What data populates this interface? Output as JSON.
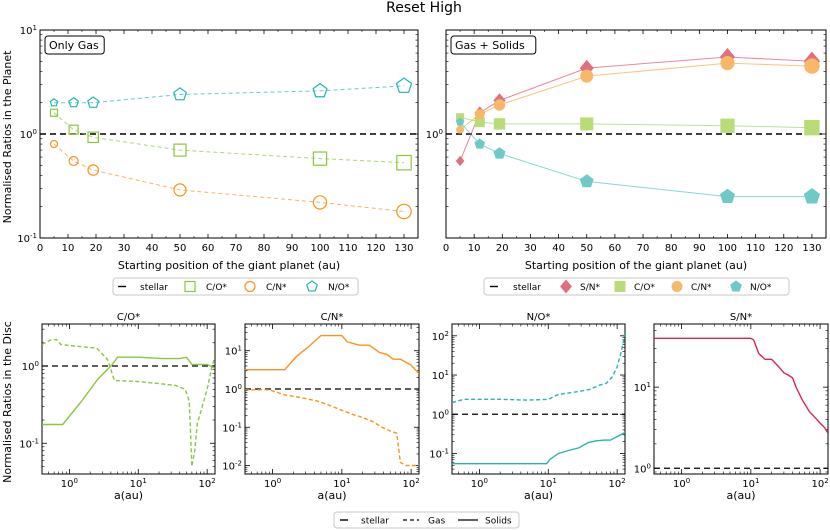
{
  "suptitle": "Reset High",
  "colors": {
    "co": "#8cc63f",
    "cn": "#f7941d",
    "no": "#26b5b0",
    "sn": "#d7264e",
    "sn_fill": "#e07080",
    "cn_fill": "#f9b868",
    "co_fill": "#b8dc78",
    "no_fill": "#6dcac6"
  },
  "y_label_top": "Normalised Ratios in the Planet",
  "y_label_bottom": "Normalised Ratios in the Disc",
  "legend_top_left": [
    "stellar",
    "C/O*",
    "C/N*",
    "N/O*"
  ],
  "legend_top_right": [
    "stellar",
    "S/N*",
    "C/O*",
    "C/N*",
    "N/O*"
  ],
  "legend_bottom": [
    "stellar",
    "Gas",
    "Solids"
  ],
  "chart_data": [
    {
      "type": "line",
      "panel_label": "Only Gas",
      "xlabel": "Starting position of the giant planet (au)",
      "ylabel": "Normalised Ratios in the Planet",
      "yscale": "log",
      "xlim": [
        0,
        135
      ],
      "ylim": [
        0.1,
        10
      ],
      "xticks": [
        0,
        10,
        20,
        30,
        40,
        50,
        60,
        70,
        80,
        90,
        100,
        110,
        120,
        130
      ],
      "yticks": [
        "10^-1",
        "10^0",
        "10^1"
      ],
      "reference": {
        "name": "stellar",
        "y": 1.0
      },
      "x": [
        5,
        12,
        19,
        50,
        100,
        130
      ],
      "series": [
        {
          "name": "C/O*",
          "marker": "square",
          "values": [
            1.6,
            1.1,
            0.93,
            0.7,
            0.58,
            0.53
          ]
        },
        {
          "name": "C/N*",
          "marker": "circle",
          "values": [
            0.8,
            0.55,
            0.45,
            0.29,
            0.22,
            0.18
          ]
        },
        {
          "name": "N/O*",
          "marker": "pentagon",
          "values": [
            2.0,
            2.0,
            2.0,
            2.4,
            2.6,
            2.9
          ]
        }
      ]
    },
    {
      "type": "line",
      "panel_label": "Gas + Solids",
      "xlabel": "Starting position of the giant planet (au)",
      "yscale": "log",
      "xlim": [
        0,
        135
      ],
      "ylim": [
        0.1,
        10
      ],
      "xticks": [
        0,
        10,
        20,
        30,
        40,
        50,
        60,
        70,
        80,
        90,
        100,
        110,
        120,
        130
      ],
      "yticks": [
        "10^0"
      ],
      "reference": {
        "name": "stellar",
        "y": 1.0
      },
      "x": [
        5,
        12,
        19,
        50,
        100,
        130
      ],
      "series": [
        {
          "name": "S/N*",
          "marker": "diamond",
          "values": [
            0.55,
            1.6,
            2.1,
            4.3,
            5.5,
            5.0
          ]
        },
        {
          "name": "C/O*",
          "marker": "square",
          "values": [
            1.45,
            1.3,
            1.25,
            1.25,
            1.2,
            1.15
          ]
        },
        {
          "name": "C/N*",
          "marker": "circle",
          "values": [
            1.1,
            1.55,
            1.9,
            3.6,
            4.8,
            4.5
          ]
        },
        {
          "name": "N/O*",
          "marker": "pentagon",
          "values": [
            1.3,
            0.8,
            0.65,
            0.35,
            0.25,
            0.25
          ]
        }
      ]
    },
    {
      "type": "line",
      "title": "C/O*",
      "xlabel": "a(au)",
      "xscale": "log",
      "yscale": "log",
      "xlim": [
        0.4,
        130
      ],
      "ylim": [
        0.04,
        3.5
      ],
      "xticks": [
        "10^0",
        "10^1",
        "10^2"
      ],
      "yticks": [
        "10^-1",
        "10^0"
      ],
      "reference": {
        "name": "stellar",
        "y": 1.0
      },
      "series": [
        {
          "name": "Gas",
          "style": "dashed",
          "points": [
            [
              0.4,
              1.9
            ],
            [
              0.55,
              2.2
            ],
            [
              0.65,
              2.2
            ],
            [
              0.75,
              1.9
            ],
            [
              1.3,
              1.8
            ],
            [
              2.5,
              1.7
            ],
            [
              3.6,
              1.2
            ],
            [
              4.5,
              0.65
            ],
            [
              10,
              0.63
            ],
            [
              25,
              0.58
            ],
            [
              35,
              0.56
            ],
            [
              48,
              0.5
            ],
            [
              55,
              0.35
            ],
            [
              60,
              0.05
            ],
            [
              66,
              0.08
            ],
            [
              72,
              0.18
            ],
            [
              85,
              0.3
            ],
            [
              100,
              0.5
            ],
            [
              115,
              0.9
            ],
            [
              125,
              1.2
            ]
          ]
        },
        {
          "name": "Solids",
          "style": "solid",
          "points": [
            [
              0.4,
              0.175
            ],
            [
              0.8,
              0.175
            ],
            [
              1.5,
              0.35
            ],
            [
              2.6,
              0.68
            ],
            [
              4.2,
              1.05
            ],
            [
              5,
              1.3
            ],
            [
              10,
              1.3
            ],
            [
              22,
              1.25
            ],
            [
              40,
              1.25
            ],
            [
              50,
              1.3
            ],
            [
              60,
              1.05
            ],
            [
              80,
              1.05
            ],
            [
              100,
              1.05
            ],
            [
              125,
              0.95
            ]
          ]
        }
      ]
    },
    {
      "type": "line",
      "title": "C/N*",
      "xlabel": "a(au)",
      "xscale": "log",
      "yscale": "log",
      "xlim": [
        0.4,
        130
      ],
      "ylim": [
        0.006,
        50
      ],
      "xticks": [
        "10^0",
        "10^1",
        "10^2"
      ],
      "yticks": [
        "10^-2",
        "10^-1",
        "10^0",
        "10^1"
      ],
      "reference": {
        "name": "stellar",
        "y": 1.0
      },
      "series": [
        {
          "name": "Gas",
          "style": "dashed",
          "points": [
            [
              0.4,
              0.95
            ],
            [
              0.9,
              0.95
            ],
            [
              1.5,
              0.7
            ],
            [
              2.5,
              0.6
            ],
            [
              4.5,
              0.48
            ],
            [
              6,
              0.4
            ],
            [
              9,
              0.3
            ],
            [
              14,
              0.22
            ],
            [
              20,
              0.18
            ],
            [
              28,
              0.14
            ],
            [
              38,
              0.1
            ],
            [
              50,
              0.08
            ],
            [
              62,
              0.07
            ],
            [
              70,
              0.012
            ],
            [
              85,
              0.01
            ],
            [
              110,
              0.01
            ],
            [
              130,
              0.01
            ]
          ]
        },
        {
          "name": "Solids",
          "style": "solid",
          "points": [
            [
              0.4,
              3.2
            ],
            [
              0.8,
              3.2
            ],
            [
              1.5,
              3.2
            ],
            [
              2.2,
              7
            ],
            [
              3.5,
              14
            ],
            [
              5,
              25
            ],
            [
              7,
              25
            ],
            [
              10,
              25
            ],
            [
              12,
              17
            ],
            [
              18,
              14
            ],
            [
              25,
              14
            ],
            [
              35,
              9
            ],
            [
              45,
              8
            ],
            [
              55,
              6
            ],
            [
              70,
              6
            ],
            [
              100,
              4.2
            ],
            [
              130,
              2.5
            ]
          ]
        }
      ]
    },
    {
      "type": "line",
      "title": "N/O*",
      "xlabel": "a(au)",
      "xscale": "log",
      "yscale": "log",
      "xlim": [
        0.4,
        130
      ],
      "ylim": [
        0.03,
        200
      ],
      "xticks": [
        "10^0",
        "10^1",
        "10^2"
      ],
      "yticks": [
        "10^-1",
        "10^0",
        "10^1",
        "10^2"
      ],
      "reference": {
        "name": "stellar",
        "y": 1.0
      },
      "series": [
        {
          "name": "Gas",
          "style": "dashed",
          "points": [
            [
              0.4,
              2.0
            ],
            [
              0.6,
              2.4
            ],
            [
              2,
              2.4
            ],
            [
              5,
              2.3
            ],
            [
              10,
              2.4
            ],
            [
              14,
              3.2
            ],
            [
              25,
              3.7
            ],
            [
              40,
              4.3
            ],
            [
              55,
              5.5
            ],
            [
              70,
              6.2
            ],
            [
              85,
              9
            ],
            [
              100,
              16
            ],
            [
              115,
              40
            ],
            [
              125,
              80
            ],
            [
              130,
              130
            ]
          ]
        },
        {
          "name": "Solids",
          "style": "solid",
          "points": [
            [
              0.4,
              0.055
            ],
            [
              2,
              0.055
            ],
            [
              5,
              0.055
            ],
            [
              9.5,
              0.055
            ],
            [
              10.5,
              0.07
            ],
            [
              14,
              0.1
            ],
            [
              20,
              0.12
            ],
            [
              28,
              0.14
            ],
            [
              38,
              0.19
            ],
            [
              50,
              0.21
            ],
            [
              65,
              0.22
            ],
            [
              80,
              0.22
            ],
            [
              100,
              0.27
            ],
            [
              125,
              0.33
            ],
            [
              130,
              0.35
            ]
          ]
        }
      ]
    },
    {
      "type": "line",
      "title": "S/N*",
      "xlabel": "a(au)",
      "xscale": "log",
      "yscale": "log",
      "xlim": [
        0.4,
        130
      ],
      "ylim": [
        0.85,
        60
      ],
      "xticks": [
        "10^0",
        "10^1",
        "10^2"
      ],
      "yticks": [
        "10^0",
        "10^1"
      ],
      "reference": {
        "name": "stellar",
        "y": 1.0
      },
      "series": [
        {
          "name": "Solids",
          "style": "solid",
          "points": [
            [
              0.4,
              40
            ],
            [
              5,
              40
            ],
            [
              10,
              40
            ],
            [
              11,
              38
            ],
            [
              13,
              26
            ],
            [
              16,
              22
            ],
            [
              20,
              22
            ],
            [
              25,
              18
            ],
            [
              30,
              15
            ],
            [
              35,
              14
            ],
            [
              40,
              13
            ],
            [
              45,
              10
            ],
            [
              55,
              7
            ],
            [
              70,
              5
            ],
            [
              85,
              4.2
            ],
            [
              100,
              3.6
            ],
            [
              115,
              3.2
            ],
            [
              130,
              2.7
            ]
          ]
        }
      ]
    }
  ]
}
